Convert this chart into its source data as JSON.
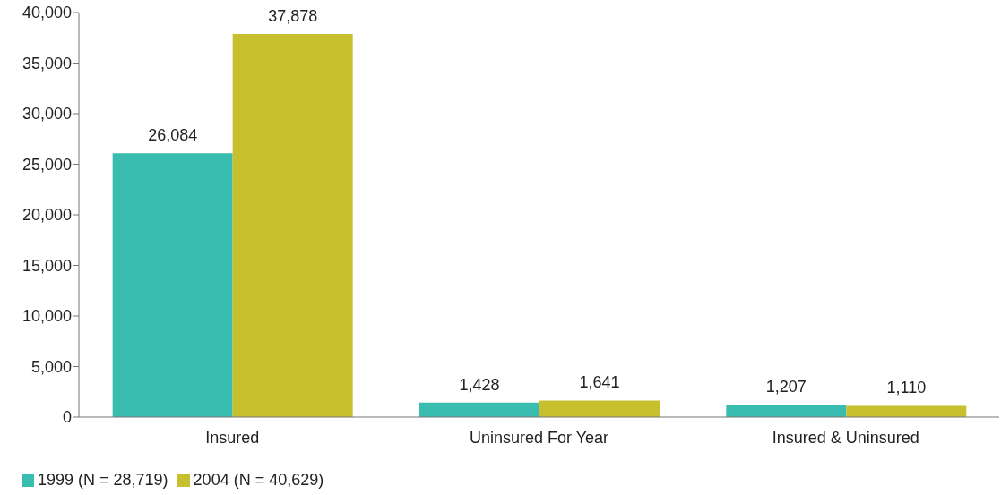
{
  "chart_data": {
    "type": "bar",
    "categories": [
      "Insured",
      "Uninsured For Year",
      "Insured & Uninsured"
    ],
    "series": [
      {
        "name": "1999 (N = 28,719)",
        "color": "#38bdb0",
        "values": [
          26084,
          1428,
          1207
        ],
        "value_labels": [
          "26,084",
          "1,428",
          "1,207"
        ]
      },
      {
        "name": "2004 (N = 40,629)",
        "color": "#c8bf2f",
        "values": [
          37878,
          1641,
          1110
        ],
        "value_labels": [
          "37,878",
          "1,641",
          "1,110"
        ]
      }
    ],
    "ylim": [
      0,
      40000
    ],
    "yticks": [
      {
        "value": 0,
        "label": "0"
      },
      {
        "value": 5000,
        "label": "5,000"
      },
      {
        "value": 10000,
        "label": "10,000"
      },
      {
        "value": 15000,
        "label": "15,000"
      },
      {
        "value": 20000,
        "label": "20,000"
      },
      {
        "value": 25000,
        "label": "25,000"
      },
      {
        "value": 30000,
        "label": "30,000"
      },
      {
        "value": 35000,
        "label": "35,000"
      },
      {
        "value": 40000,
        "label": "40,000"
      }
    ],
    "grid": false,
    "legend": "bottom left"
  }
}
